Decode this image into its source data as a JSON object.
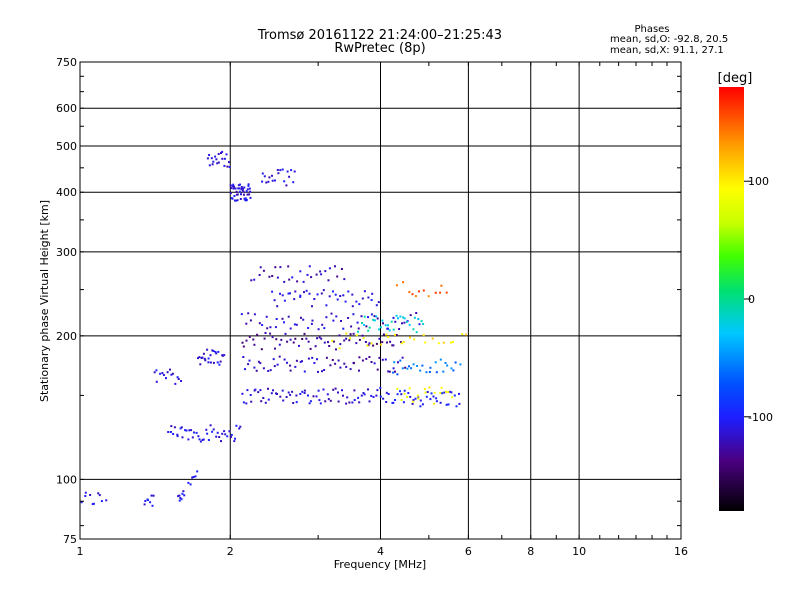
{
  "header": {
    "title_line1": "Tromsø 20161122 21:24:00–21:25:43",
    "title_line2": "RwPretec (8p)"
  },
  "stats": {
    "heading": "Phases",
    "line_o": "mean, sd,O: -92.8, 20.5",
    "line_x": "mean, sd,X:  91.1, 27.1"
  },
  "chart_data": {
    "type": "scatter",
    "xlabel": "Frequency [MHz]",
    "ylabel": "Stationary phase Virtual Height [km]",
    "x_scale": "log",
    "y_scale": "log",
    "xlim": [
      1,
      16
    ],
    "ylim": [
      75,
      750
    ],
    "x_ticks": [
      {
        "value": 1,
        "label": "1"
      },
      {
        "value": 2,
        "label": "2"
      },
      {
        "value": 4,
        "label": "4"
      },
      {
        "value": 6,
        "label": "6"
      },
      {
        "value": 8,
        "label": "8"
      },
      {
        "value": 10,
        "label": "10"
      },
      {
        "value": 16,
        "label": "16"
      }
    ],
    "y_ticks": [
      {
        "value": 75,
        "label": "75"
      },
      {
        "value": 100,
        "label": "100"
      },
      {
        "value": 200,
        "label": "200"
      },
      {
        "value": 300,
        "label": "300"
      },
      {
        "value": 400,
        "label": "400"
      },
      {
        "value": 500,
        "label": "500"
      },
      {
        "value": 600,
        "label": "600"
      },
      {
        "value": 750,
        "label": "750"
      }
    ],
    "grid": true,
    "colorbar": {
      "title": "[deg]",
      "range": [
        -180,
        180
      ],
      "ticks": [
        {
          "value": 100,
          "label": "100"
        },
        {
          "value": 0,
          "label": "0"
        },
        {
          "value": -100,
          "label": "-100"
        }
      ]
    },
    "traces": [
      {
        "x_range": [
          1.0,
          1.13
        ],
        "height": 91,
        "phase": -110,
        "count": 10
      },
      {
        "x_range": [
          1.34,
          1.41
        ],
        "height": 91,
        "phase": -105,
        "count": 8
      },
      {
        "x_range": [
          1.57,
          1.62
        ],
        "height": 93,
        "phase": -105,
        "count": 8
      },
      {
        "x_range": [
          1.64,
          1.72
        ],
        "height": 100,
        "phase": -100,
        "count": 6
      },
      {
        "x_range": [
          1.5,
          2.1
        ],
        "height": 125,
        "phase": -110,
        "count": 45
      },
      {
        "x_range": [
          2.1,
          4.0
        ],
        "height": 150,
        "phase": -115,
        "count": 70
      },
      {
        "x_range": [
          4.0,
          5.8
        ],
        "height": 148,
        "phase": -100,
        "count": 40
      },
      {
        "x_range": [
          4.3,
          5.6
        ],
        "height": 150,
        "phase": 90,
        "count": 18
      },
      {
        "x_range": [
          2.1,
          4.5
        ],
        "height": 175,
        "phase": -120,
        "count": 60
      },
      {
        "x_range": [
          4.2,
          5.8
        ],
        "height": 172,
        "phase": -60,
        "count": 25
      },
      {
        "x_range": [
          2.1,
          4.4
        ],
        "height": 195,
        "phase": -130,
        "count": 60
      },
      {
        "x_range": [
          3.2,
          6.0
        ],
        "height": 195,
        "phase": 100,
        "count": 25
      },
      {
        "x_range": [
          2.1,
          4.8
        ],
        "height": 215,
        "phase": -115,
        "count": 55
      },
      {
        "x_range": [
          3.6,
          4.9
        ],
        "height": 212,
        "phase": -20,
        "count": 30
      },
      {
        "x_range": [
          2.4,
          4.0
        ],
        "height": 240,
        "phase": -110,
        "count": 40
      },
      {
        "x_range": [
          4.3,
          5.5
        ],
        "height": 250,
        "phase": 150,
        "count": 12
      },
      {
        "x_range": [
          2.2,
          3.4
        ],
        "height": 270,
        "phase": -120,
        "count": 30
      },
      {
        "x_range": [
          2.0,
          2.2
        ],
        "height": 400,
        "phase": -110,
        "count": 45
      },
      {
        "x_range": [
          2.3,
          2.7
        ],
        "height": 430,
        "phase": -110,
        "count": 20
      },
      {
        "x_range": [
          1.8,
          2.0
        ],
        "height": 470,
        "phase": -115,
        "count": 20
      },
      {
        "x_range": [
          1.72,
          1.95
        ],
        "height": 180,
        "phase": -110,
        "count": 25
      },
      {
        "x_range": [
          1.4,
          1.6
        ],
        "height": 165,
        "phase": -110,
        "count": 15
      }
    ]
  }
}
